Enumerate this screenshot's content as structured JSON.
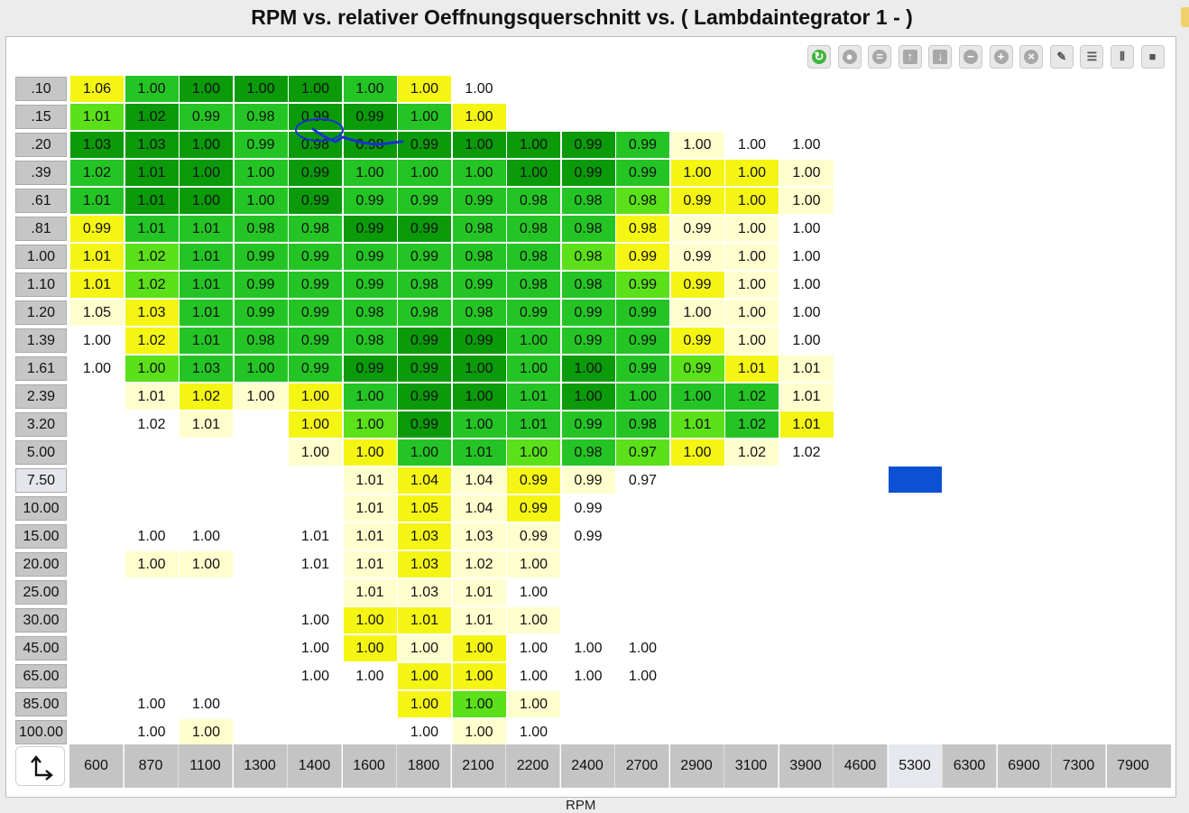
{
  "title": "RPM vs. relativer Oeffnungsquerschnitt vs. ( Lambdaintegrator 1 -   )",
  "x_axis_label": "RPM",
  "corner_icon": "axis-swap-icon",
  "colors": {
    "dark_green": "#0a9a0a",
    "green": "#25c425",
    "light_green": "#5be01a",
    "yellow_green": "#c6f219",
    "yellow": "#f5f514",
    "pale_yellow": "#ffffce",
    "white": "#ffffff",
    "marker": "#0b51d2"
  },
  "toolbar": [
    {
      "name": "refresh-icon",
      "glyph": "↻",
      "style": "green"
    },
    {
      "name": "bookmark-icon",
      "glyph": "●",
      "style": ""
    },
    {
      "name": "equals-icon",
      "glyph": "=",
      "style": ""
    },
    {
      "name": "arrow-up-icon",
      "glyph": "↑",
      "style": "sq"
    },
    {
      "name": "arrow-down-icon",
      "glyph": "↓",
      "style": "sq"
    },
    {
      "name": "minus-icon",
      "glyph": "−",
      "style": ""
    },
    {
      "name": "plus-icon",
      "glyph": "+",
      "style": ""
    },
    {
      "name": "multiply-icon",
      "glyph": "×",
      "style": ""
    },
    {
      "name": "pencil-icon",
      "glyph": "✎",
      "style": "plain"
    },
    {
      "name": "rows-icon",
      "glyph": "☰",
      "style": "plain"
    },
    {
      "name": "columns-icon",
      "glyph": "⦀",
      "style": "plain"
    },
    {
      "name": "table-icon",
      "glyph": "■",
      "style": "plain"
    }
  ],
  "columns": [
    "600",
    "870",
    "1100",
    "1300",
    "1400",
    "1600",
    "1800",
    "2100",
    "2200",
    "2400",
    "2700",
    "2900",
    "3100",
    "3900",
    "4600",
    "5300",
    "6300",
    "6900",
    "7300",
    "7900"
  ],
  "highlighted_column": "5300",
  "highlighted_row": "7.50",
  "rows": [
    {
      "label": ".10",
      "cells": [
        [
          "1.06",
          "Y"
        ],
        [
          "1.00",
          "G"
        ],
        [
          "1.00",
          "D"
        ],
        [
          "1.00",
          "D"
        ],
        [
          "1.00",
          "D"
        ],
        [
          "1.00",
          "G"
        ],
        [
          "1.00",
          "Y"
        ],
        [
          "1.00",
          "W"
        ]
      ]
    },
    {
      "label": ".15",
      "cells": [
        [
          "1.01",
          "L"
        ],
        [
          "1.02",
          "D"
        ],
        [
          "0.99",
          "G"
        ],
        [
          "0.98",
          "G"
        ],
        [
          "0.99",
          "D"
        ],
        [
          "0.99",
          "D"
        ],
        [
          "1.00",
          "G"
        ],
        [
          "1.00",
          "Y"
        ]
      ]
    },
    {
      "label": ".20",
      "cells": [
        [
          "1.03",
          "D"
        ],
        [
          "1.03",
          "D"
        ],
        [
          "1.00",
          "D"
        ],
        [
          "0.99",
          "G"
        ],
        [
          "0.98",
          "D"
        ],
        [
          "0.98",
          "D"
        ],
        [
          "0.99",
          "D"
        ],
        [
          "1.00",
          "D"
        ],
        [
          "1.00",
          "D"
        ],
        [
          "0.99",
          "D"
        ],
        [
          "0.99",
          "G"
        ],
        [
          "1.00",
          "P"
        ],
        [
          "1.00",
          "W"
        ],
        [
          "1.00",
          "W"
        ]
      ]
    },
    {
      "label": ".39",
      "cells": [
        [
          "1.02",
          "G"
        ],
        [
          "1.01",
          "D"
        ],
        [
          "1.00",
          "D"
        ],
        [
          "1.00",
          "G"
        ],
        [
          "0.99",
          "D"
        ],
        [
          "1.00",
          "G"
        ],
        [
          "1.00",
          "G"
        ],
        [
          "1.00",
          "G"
        ],
        [
          "1.00",
          "D"
        ],
        [
          "0.99",
          "D"
        ],
        [
          "0.99",
          "G"
        ],
        [
          "1.00",
          "Y"
        ],
        [
          "1.00",
          "Y"
        ],
        [
          "1.00",
          "P"
        ]
      ]
    },
    {
      "label": ".61",
      "cells": [
        [
          "1.01",
          "G"
        ],
        [
          "1.01",
          "D"
        ],
        [
          "1.00",
          "D"
        ],
        [
          "1.00",
          "G"
        ],
        [
          "0.99",
          "D"
        ],
        [
          "0.99",
          "G"
        ],
        [
          "0.99",
          "G"
        ],
        [
          "0.99",
          "G"
        ],
        [
          "0.98",
          "G"
        ],
        [
          "0.98",
          "G"
        ],
        [
          "0.98",
          "L"
        ],
        [
          "0.99",
          "Y"
        ],
        [
          "1.00",
          "Y"
        ],
        [
          "1.00",
          "P"
        ]
      ]
    },
    {
      "label": ".81",
      "cells": [
        [
          "0.99",
          "Y"
        ],
        [
          "1.01",
          "G"
        ],
        [
          "1.01",
          "G"
        ],
        [
          "0.98",
          "G"
        ],
        [
          "0.98",
          "G"
        ],
        [
          "0.99",
          "D"
        ],
        [
          "0.99",
          "D"
        ],
        [
          "0.98",
          "G"
        ],
        [
          "0.98",
          "G"
        ],
        [
          "0.98",
          "G"
        ],
        [
          "0.98",
          "Y"
        ],
        [
          "0.99",
          "P"
        ],
        [
          "1.00",
          "P"
        ],
        [
          "1.00",
          "W"
        ]
      ]
    },
    {
      "label": "1.00",
      "cells": [
        [
          "1.01",
          "Y"
        ],
        [
          "1.02",
          "L"
        ],
        [
          "1.01",
          "G"
        ],
        [
          "0.99",
          "G"
        ],
        [
          "0.99",
          "G"
        ],
        [
          "0.99",
          "G"
        ],
        [
          "0.99",
          "G"
        ],
        [
          "0.98",
          "G"
        ],
        [
          "0.98",
          "G"
        ],
        [
          "0.98",
          "L"
        ],
        [
          "0.99",
          "Y"
        ],
        [
          "0.99",
          "P"
        ],
        [
          "1.00",
          "P"
        ],
        [
          "1.00",
          "W"
        ]
      ]
    },
    {
      "label": "1.10",
      "cells": [
        [
          "1.01",
          "Y"
        ],
        [
          "1.02",
          "L"
        ],
        [
          "1.01",
          "G"
        ],
        [
          "0.99",
          "G"
        ],
        [
          "0.99",
          "G"
        ],
        [
          "0.99",
          "G"
        ],
        [
          "0.98",
          "G"
        ],
        [
          "0.99",
          "G"
        ],
        [
          "0.98",
          "G"
        ],
        [
          "0.98",
          "G"
        ],
        [
          "0.99",
          "L"
        ],
        [
          "0.99",
          "Y"
        ],
        [
          "1.00",
          "P"
        ],
        [
          "1.00",
          "W"
        ]
      ]
    },
    {
      "label": "1.20",
      "cells": [
        [
          "1.05",
          "P"
        ],
        [
          "1.03",
          "Y"
        ],
        [
          "1.01",
          "G"
        ],
        [
          "0.99",
          "G"
        ],
        [
          "0.99",
          "G"
        ],
        [
          "0.98",
          "G"
        ],
        [
          "0.98",
          "G"
        ],
        [
          "0.98",
          "G"
        ],
        [
          "0.99",
          "G"
        ],
        [
          "0.99",
          "G"
        ],
        [
          "0.99",
          "G"
        ],
        [
          "1.00",
          "P"
        ],
        [
          "1.00",
          "P"
        ],
        [
          "1.00",
          "W"
        ]
      ]
    },
    {
      "label": "1.39",
      "cells": [
        [
          "1.00",
          "W"
        ],
        [
          "1.02",
          "Y"
        ],
        [
          "1.01",
          "G"
        ],
        [
          "0.98",
          "G"
        ],
        [
          "0.99",
          "G"
        ],
        [
          "0.98",
          "G"
        ],
        [
          "0.99",
          "D"
        ],
        [
          "0.99",
          "D"
        ],
        [
          "1.00",
          "G"
        ],
        [
          "0.99",
          "G"
        ],
        [
          "0.99",
          "G"
        ],
        [
          "0.99",
          "Y"
        ],
        [
          "1.00",
          "P"
        ],
        [
          "1.00",
          "W"
        ]
      ]
    },
    {
      "label": "1.61",
      "cells": [
        [
          "1.00",
          "W"
        ],
        [
          "1.00",
          "L"
        ],
        [
          "1.03",
          "G"
        ],
        [
          "1.00",
          "G"
        ],
        [
          "0.99",
          "G"
        ],
        [
          "0.99",
          "D"
        ],
        [
          "0.99",
          "D"
        ],
        [
          "1.00",
          "D"
        ],
        [
          "1.00",
          "G"
        ],
        [
          "1.00",
          "D"
        ],
        [
          "0.99",
          "G"
        ],
        [
          "0.99",
          "L"
        ],
        [
          "1.01",
          "Y"
        ],
        [
          "1.01",
          "P"
        ]
      ]
    },
    {
      "label": "2.39",
      "cells": [
        [
          "",
          ""
        ],
        [
          "1.01",
          "P"
        ],
        [
          "1.02",
          "Y"
        ],
        [
          "1.00",
          "P"
        ],
        [
          "1.00",
          "Y"
        ],
        [
          "1.00",
          "G"
        ],
        [
          "0.99",
          "D"
        ],
        [
          "1.00",
          "D"
        ],
        [
          "1.01",
          "G"
        ],
        [
          "1.00",
          "D"
        ],
        [
          "1.00",
          "G"
        ],
        [
          "1.00",
          "G"
        ],
        [
          "1.02",
          "G"
        ],
        [
          "1.01",
          "P"
        ]
      ]
    },
    {
      "label": "3.20",
      "cells": [
        [
          "",
          ""
        ],
        [
          "1.02",
          "W"
        ],
        [
          "1.01",
          "P"
        ],
        [
          "",
          ""
        ],
        [
          "1.00",
          "Y"
        ],
        [
          "1.00",
          "L"
        ],
        [
          "0.99",
          "D"
        ],
        [
          "1.00",
          "G"
        ],
        [
          "1.01",
          "G"
        ],
        [
          "0.99",
          "G"
        ],
        [
          "0.98",
          "G"
        ],
        [
          "1.01",
          "L"
        ],
        [
          "1.02",
          "G"
        ],
        [
          "1.01",
          "Y"
        ]
      ]
    },
    {
      "label": "5.00",
      "cells": [
        [
          "",
          ""
        ],
        [
          "",
          ""
        ],
        [
          "",
          ""
        ],
        [
          "",
          ""
        ],
        [
          "1.00",
          "P"
        ],
        [
          "1.00",
          "Y"
        ],
        [
          "1.00",
          "G"
        ],
        [
          "1.01",
          "G"
        ],
        [
          "1.00",
          "L"
        ],
        [
          "0.98",
          "G"
        ],
        [
          "0.97",
          "L"
        ],
        [
          "1.00",
          "Y"
        ],
        [
          "1.02",
          "P"
        ],
        [
          "1.02",
          "W"
        ]
      ]
    },
    {
      "label": "7.50",
      "cells": [
        [
          "",
          ""
        ],
        [
          "",
          ""
        ],
        [
          "",
          ""
        ],
        [
          "",
          ""
        ],
        [
          "",
          ""
        ],
        [
          "1.01",
          "P"
        ],
        [
          "1.04",
          "Y"
        ],
        [
          "1.04",
          "P"
        ],
        [
          "0.99",
          "Y"
        ],
        [
          "0.99",
          "P"
        ],
        [
          "0.97",
          "W"
        ]
      ]
    },
    {
      "label": "10.00",
      "cells": [
        [
          "",
          ""
        ],
        [
          "",
          ""
        ],
        [
          "",
          ""
        ],
        [
          "",
          ""
        ],
        [
          "",
          ""
        ],
        [
          "1.01",
          "P"
        ],
        [
          "1.05",
          "Y"
        ],
        [
          "1.04",
          "P"
        ],
        [
          "0.99",
          "Y"
        ],
        [
          "0.99",
          "W"
        ]
      ]
    },
    {
      "label": "15.00",
      "cells": [
        [
          "",
          ""
        ],
        [
          "1.00",
          "W"
        ],
        [
          "1.00",
          "W"
        ],
        [
          "",
          ""
        ],
        [
          "1.01",
          "W"
        ],
        [
          "1.01",
          "P"
        ],
        [
          "1.03",
          "Y"
        ],
        [
          "1.03",
          "P"
        ],
        [
          "0.99",
          "P"
        ],
        [
          "0.99",
          "W"
        ]
      ]
    },
    {
      "label": "20.00",
      "cells": [
        [
          "",
          ""
        ],
        [
          "1.00",
          "P"
        ],
        [
          "1.00",
          "P"
        ],
        [
          "",
          ""
        ],
        [
          "1.01",
          "W"
        ],
        [
          "1.01",
          "P"
        ],
        [
          "1.03",
          "Y"
        ],
        [
          "1.02",
          "P"
        ],
        [
          "1.00",
          "P"
        ]
      ]
    },
    {
      "label": "25.00",
      "cells": [
        [
          "",
          ""
        ],
        [
          "",
          ""
        ],
        [
          "",
          ""
        ],
        [
          "",
          ""
        ],
        [
          "",
          ""
        ],
        [
          "1.01",
          "P"
        ],
        [
          "1.03",
          "P"
        ],
        [
          "1.01",
          "P"
        ],
        [
          "1.00",
          "W"
        ]
      ]
    },
    {
      "label": "30.00",
      "cells": [
        [
          "",
          ""
        ],
        [
          "",
          ""
        ],
        [
          "",
          ""
        ],
        [
          "",
          ""
        ],
        [
          "1.00",
          "W"
        ],
        [
          "1.00",
          "Y"
        ],
        [
          "1.01",
          "Y"
        ],
        [
          "1.01",
          "P"
        ],
        [
          "1.00",
          "P"
        ]
      ]
    },
    {
      "label": "45.00",
      "cells": [
        [
          "",
          ""
        ],
        [
          "",
          ""
        ],
        [
          "",
          ""
        ],
        [
          "",
          ""
        ],
        [
          "1.00",
          "W"
        ],
        [
          "1.00",
          "Y"
        ],
        [
          "1.00",
          "P"
        ],
        [
          "1.00",
          "Y"
        ],
        [
          "1.00",
          "W"
        ],
        [
          "1.00",
          "W"
        ],
        [
          "1.00",
          "W"
        ]
      ]
    },
    {
      "label": "65.00",
      "cells": [
        [
          "",
          ""
        ],
        [
          "",
          ""
        ],
        [
          "",
          ""
        ],
        [
          "",
          ""
        ],
        [
          "1.00",
          "W"
        ],
        [
          "1.00",
          "W"
        ],
        [
          "1.00",
          "Y"
        ],
        [
          "1.00",
          "Y"
        ],
        [
          "1.00",
          "W"
        ],
        [
          "1.00",
          "W"
        ],
        [
          "1.00",
          "W"
        ]
      ]
    },
    {
      "label": "85.00",
      "cells": [
        [
          "",
          ""
        ],
        [
          "1.00",
          "W"
        ],
        [
          "1.00",
          "W"
        ],
        [
          "",
          ""
        ],
        [
          "",
          ""
        ],
        [
          "",
          ""
        ],
        [
          "1.00",
          "Y"
        ],
        [
          "1.00",
          "L"
        ],
        [
          "1.00",
          "P"
        ]
      ]
    },
    {
      "label": "100.00",
      "cells": [
        [
          "",
          ""
        ],
        [
          "1.00",
          "W"
        ],
        [
          "1.00",
          "P"
        ],
        [
          "",
          ""
        ],
        [
          "",
          ""
        ],
        [
          "",
          ""
        ],
        [
          "1.00",
          "W"
        ],
        [
          "1.00",
          "P"
        ],
        [
          "1.00",
          "W"
        ]
      ]
    }
  ]
}
